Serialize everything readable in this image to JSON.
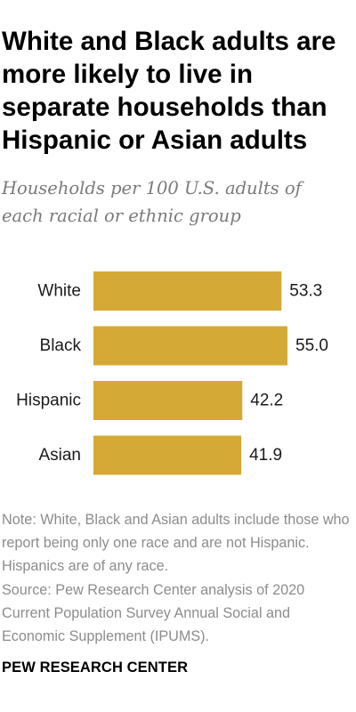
{
  "title": "White and Black adults are more likely to live in separate households than Hispanic or Asian adults",
  "subtitle": "Households per 100 U.S. adults of each racial or ethnic group",
  "note": "Note: White, Black and Asian adults include those who report being only one race and are not Hispanic. Hispanics are of any race.",
  "source": "Source: Pew Research Center analysis of 2020 Current Population Survey Annual Social and Economic Supplement (IPUMS).",
  "footer": "PEW RESEARCH CENTER",
  "colors": {
    "bar": "#d5a935"
  },
  "chart_data": {
    "type": "bar",
    "orientation": "horizontal",
    "title": "White and Black adults are more likely to live in separate households than Hispanic or Asian adults",
    "subtitle": "Households per 100 U.S. adults of each racial or ethnic group",
    "categories": [
      "White",
      "Black",
      "Hispanic",
      "Asian"
    ],
    "values": [
      53.3,
      55.0,
      42.2,
      41.9
    ],
    "value_labels": [
      "53.3",
      "55.0",
      "42.2",
      "41.9"
    ],
    "xlabel": "",
    "ylabel": "",
    "xlim": [
      0,
      55.0
    ],
    "grid": false,
    "legend": "none"
  }
}
